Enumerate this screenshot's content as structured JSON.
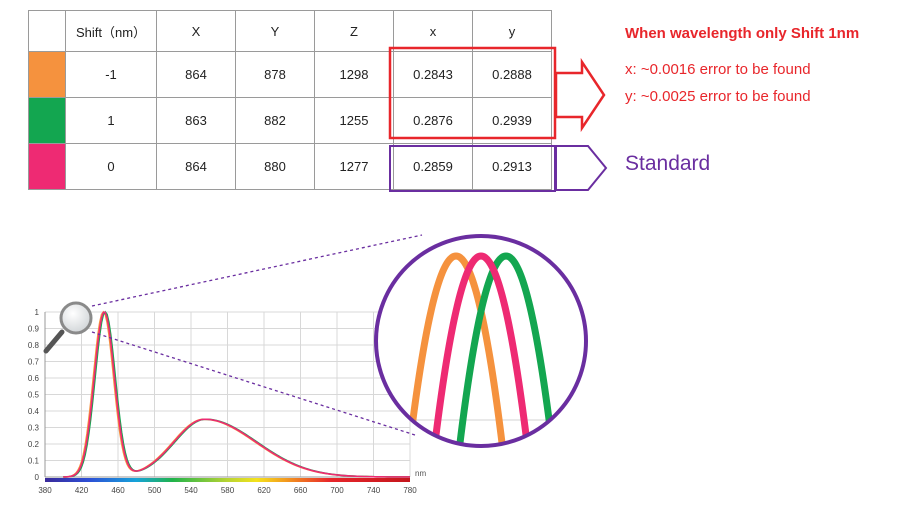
{
  "table": {
    "headers": [
      "",
      "Shift（nm）",
      "X",
      "Y",
      "Z",
      "x",
      "y"
    ],
    "rows": [
      {
        "swatch": "#f5923e",
        "cells": [
          "-1",
          "864",
          "878",
          "1298",
          "0.2843",
          "0.2888"
        ]
      },
      {
        "swatch": "#13a650",
        "cells": [
          "1",
          "863",
          "882",
          "1255",
          "0.2876",
          "0.2939"
        ]
      },
      {
        "swatch": "#ee2a73",
        "cells": [
          "0",
          "864",
          "880",
          "1277",
          "0.2859",
          "0.2913"
        ]
      }
    ]
  },
  "notes": {
    "title": "When wavelength only Shift 1nm",
    "line_x": "x: ~0.0016 error to be found",
    "line_y": "y: ~0.0025 error to be found",
    "standard": "Standard"
  },
  "colors": {
    "highlight_red": "#e8262b",
    "highlight_purple": "#6a2ea0"
  },
  "chart_data": {
    "type": "line",
    "xlabel": "nm",
    "xlim": [
      380,
      780
    ],
    "ylim": [
      0,
      1
    ],
    "x_ticks": [
      380,
      420,
      460,
      500,
      540,
      580,
      620,
      660,
      700,
      740,
      780
    ],
    "x_tick_labels": [
      "380",
      "420",
      "460",
      "500",
      "540",
      "580",
      "620",
      "660",
      "700",
      "740",
      "780"
    ],
    "y_ticks": [
      0,
      0.1,
      0.2,
      0.3,
      0.4,
      0.5,
      0.6,
      0.7,
      0.8,
      0.9,
      1
    ],
    "y_tick_labels": [
      "0",
      "0.1",
      "0.2",
      "0.3",
      "0.4",
      "0.5",
      "0.6",
      "0.7",
      "0.8",
      "0.9",
      "1"
    ],
    "grid": true,
    "peak1": {
      "center": 445,
      "width": 11,
      "height": 1.0
    },
    "peak2": {
      "center": 555,
      "width": 45,
      "height": 0.35
    },
    "series": [
      {
        "color": "#f5923e",
        "shift": -1
      },
      {
        "color": "#13a650",
        "shift": 1
      },
      {
        "color": "#ee2a73",
        "shift": 0
      }
    ]
  }
}
